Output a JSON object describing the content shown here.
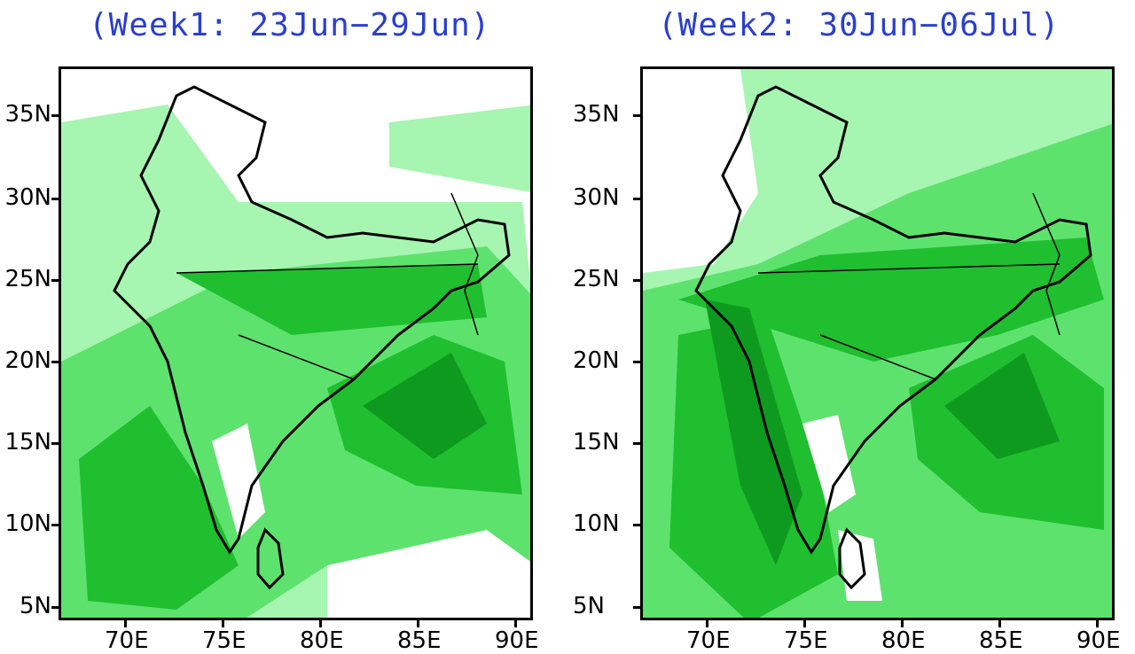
{
  "panels": [
    {
      "title": "(Week1: 23Jun−29Jun)"
    },
    {
      "title": "(Week2: 30Jun−06Jul)"
    }
  ],
  "lat_labels": [
    "35N",
    "30N",
    "25N",
    "20N",
    "15N",
    "10N",
    "5N"
  ],
  "lon_labels": [
    "70E",
    "75E",
    "80E",
    "85E",
    "90E"
  ],
  "colors": {
    "title": "#2a3fd0",
    "light": "#a6f5b0",
    "mid": "#5ee26e",
    "dark": "#1fbf2f",
    "darker": "#0e9a1f"
  }
}
